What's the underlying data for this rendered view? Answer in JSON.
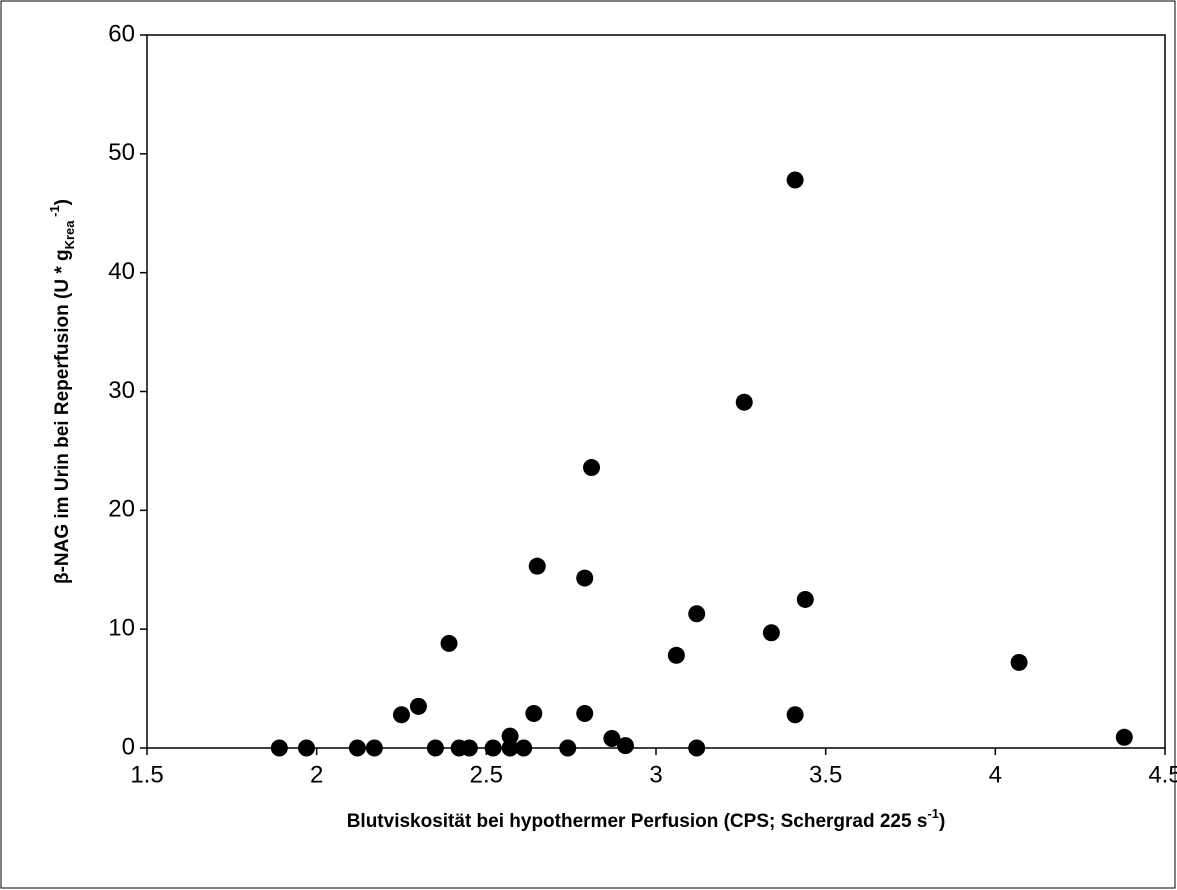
{
  "chart_data": {
    "type": "scatter",
    "xlabel_parts": [
      {
        "text": "Blutviskosität bei hypothermer Perfusion (CPS; Schergrad 225 s",
        "shift": "none"
      },
      {
        "text": "-1",
        "shift": "super"
      },
      {
        "text": ")",
        "shift": "none"
      }
    ],
    "ylabel_parts": [
      {
        "text": "β-NAG im Urin bei Reperfusion (U * g",
        "shift": "none"
      },
      {
        "text": "Krea",
        "shift": "sub"
      },
      {
        "text": " -1",
        "shift": "super"
      },
      {
        "text": ")",
        "shift": "none"
      }
    ],
    "x": [
      1.89,
      1.97,
      2.12,
      2.17,
      2.25,
      2.3,
      2.35,
      2.39,
      2.42,
      2.45,
      2.52,
      2.57,
      2.57,
      2.61,
      2.64,
      2.65,
      2.74,
      2.79,
      2.79,
      2.81,
      2.87,
      2.91,
      3.06,
      3.12,
      3.12,
      3.26,
      3.34,
      3.41,
      3.41,
      3.44,
      4.07,
      4.38
    ],
    "y": [
      0,
      0,
      0,
      0,
      2.8,
      3.5,
      0,
      8.8,
      0,
      0,
      0,
      1.0,
      0,
      0,
      2.9,
      15.3,
      0,
      14.3,
      2.9,
      23.6,
      0.8,
      0.2,
      7.8,
      11.3,
      0,
      29.1,
      9.7,
      47.8,
      2.8,
      12.5,
      7.2,
      0.9
    ],
    "color": "#000000",
    "xlim": [
      1.5,
      4.5
    ],
    "xticks": [
      1.5,
      2,
      2.5,
      3,
      3.5,
      4,
      4.5
    ],
    "ylim": [
      0,
      60
    ],
    "yticks": [
      0,
      10,
      20,
      30,
      40,
      50,
      60
    ]
  }
}
